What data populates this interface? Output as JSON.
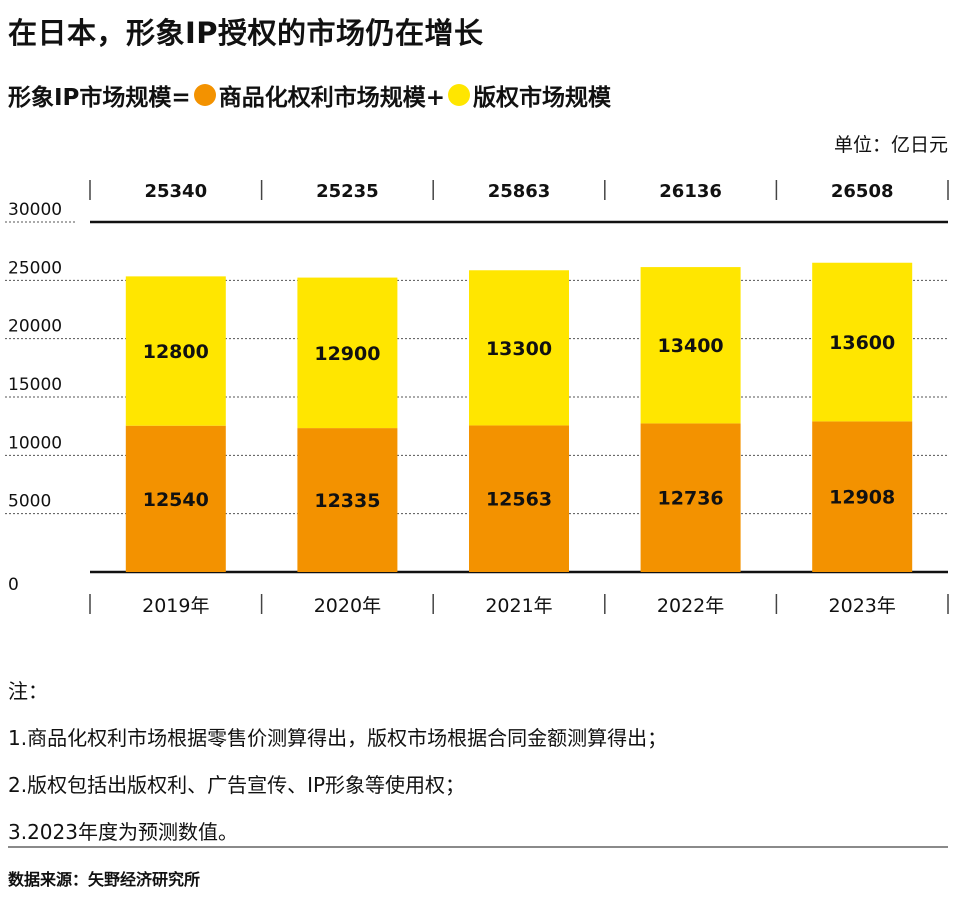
{
  "header": {
    "title": "在日本，形象IP授权的市场仍在增长",
    "subtitle_part1": "形象IP市场规模=",
    "subtitle_part2": "商品化权利市场规模+",
    "subtitle_part3": "版权市场规模",
    "unit": "单位：亿日元"
  },
  "colors": {
    "merch": "#f39200",
    "copyright": "#ffe600",
    "grid": "#555555",
    "axis": "#111111"
  },
  "chart_data": {
    "type": "bar",
    "stacked": true,
    "categories": [
      "2019年",
      "2020年",
      "2021年",
      "2022年",
      "2023年"
    ],
    "series": [
      {
        "name": "商品化权利市场规模",
        "values": [
          12540,
          12335,
          12563,
          12736,
          12908
        ]
      },
      {
        "name": "版权市场规模",
        "values": [
          12800,
          12900,
          13300,
          13400,
          13600
        ]
      }
    ],
    "totals": [
      25340,
      25235,
      25863,
      26136,
      26508
    ],
    "y_ticks": [
      0,
      5000,
      10000,
      15000,
      20000,
      25000,
      30000
    ],
    "ylim": [
      0,
      30000
    ],
    "grid": true,
    "legend": "subtitle"
  },
  "notes": {
    "heading": "注：",
    "items": [
      "1.商品化权利市场根据零售价测算得出，版权市场根据合同金额测算得出；",
      "2.版权包括出版权利、广告宣传、IP形象等使用权；",
      "3.2023年度为预测数值。"
    ]
  },
  "source": "数据来源：矢野经济研究所"
}
